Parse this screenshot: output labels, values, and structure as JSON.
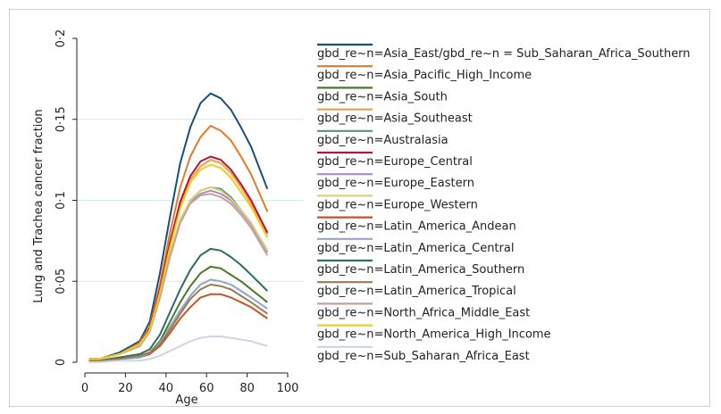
{
  "chart_data": {
    "type": "line",
    "xlabel": "Age",
    "ylabel": "Lung and Trachea cancer fraction",
    "xlim": [
      0,
      100
    ],
    "ylim": [
      0,
      0.2
    ],
    "x_ticks": [
      {
        "value": 0,
        "label": "0"
      },
      {
        "value": 20,
        "label": "20"
      },
      {
        "value": 40,
        "label": "40"
      },
      {
        "value": 60,
        "label": "60"
      },
      {
        "value": 80,
        "label": "80"
      },
      {
        "value": 100,
        "label": "100"
      }
    ],
    "y_ticks": [
      {
        "value": 0,
        "label": "0"
      },
      {
        "value": 0.05,
        "label": "0·05"
      },
      {
        "value": 0.1,
        "label": "0·1"
      },
      {
        "value": 0.15,
        "label": "0·15"
      },
      {
        "value": 0.2,
        "label": "0·2"
      }
    ],
    "grid": "horizontal",
    "legend_position": "right",
    "x": [
      2,
      7,
      17,
      27,
      32,
      37,
      42,
      47,
      52,
      57,
      62,
      67,
      72,
      77,
      82,
      90
    ],
    "series": [
      {
        "name": "gbd_re~n=Asia_East/gbd_re~n = Sub_Saharan_Africa_Southern",
        "color": "#1b4f7a",
        "values": [
          0.002,
          0.002,
          0.006,
          0.013,
          0.025,
          0.055,
          0.09,
          0.123,
          0.145,
          0.16,
          0.166,
          0.163,
          0.156,
          0.145,
          0.133,
          0.107
        ]
      },
      {
        "name": "gbd_re~n=Asia_Pacific_High_Income",
        "color": "#e07b2a",
        "values": [
          0.002,
          0.002,
          0.005,
          0.012,
          0.022,
          0.048,
          0.08,
          0.108,
          0.127,
          0.139,
          0.146,
          0.143,
          0.137,
          0.127,
          0.116,
          0.093
        ]
      },
      {
        "name": "gbd_re~n=Asia_South",
        "color": "#4d7a2a",
        "values": [
          0.001,
          0.001,
          0.002,
          0.004,
          0.006,
          0.013,
          0.025,
          0.037,
          0.047,
          0.055,
          0.059,
          0.058,
          0.054,
          0.05,
          0.045,
          0.037
        ]
      },
      {
        "name": "gbd_re~n=Asia_Southeast",
        "color": "#f0a04b",
        "values": [
          0.002,
          0.002,
          0.005,
          0.011,
          0.021,
          0.045,
          0.073,
          0.097,
          0.113,
          0.121,
          0.125,
          0.123,
          0.117,
          0.108,
          0.098,
          0.079
        ]
      },
      {
        "name": "gbd_re~n=Australasia",
        "color": "#5f8f7a",
        "values": [
          0.002,
          0.002,
          0.005,
          0.01,
          0.019,
          0.04,
          0.066,
          0.087,
          0.1,
          0.106,
          0.108,
          0.107,
          0.102,
          0.094,
          0.086,
          0.069
        ]
      },
      {
        "name": "gbd_re~n=Europe_Central",
        "color": "#b3163a",
        "values": [
          0.002,
          0.002,
          0.005,
          0.011,
          0.021,
          0.045,
          0.074,
          0.099,
          0.115,
          0.124,
          0.127,
          0.125,
          0.119,
          0.11,
          0.1,
          0.08
        ]
      },
      {
        "name": "gbd_re~n=Europe_Eastern",
        "color": "#a98cc4",
        "values": [
          0.002,
          0.002,
          0.005,
          0.01,
          0.019,
          0.041,
          0.066,
          0.087,
          0.099,
          0.104,
          0.106,
          0.104,
          0.1,
          0.093,
          0.085,
          0.068
        ]
      },
      {
        "name": "gbd_re~n=Europe_Western",
        "color": "#d9d37a",
        "values": [
          0.002,
          0.002,
          0.005,
          0.01,
          0.019,
          0.041,
          0.067,
          0.088,
          0.1,
          0.106,
          0.108,
          0.106,
          0.101,
          0.094,
          0.086,
          0.069
        ]
      },
      {
        "name": "gbd_re~n=Latin_America_Andean",
        "color": "#c2562a",
        "values": [
          0.001,
          0.001,
          0.002,
          0.003,
          0.005,
          0.01,
          0.018,
          0.027,
          0.034,
          0.04,
          0.042,
          0.042,
          0.04,
          0.037,
          0.034,
          0.027
        ]
      },
      {
        "name": "gbd_re~n=Latin_America_Central",
        "color": "#8fa6c4",
        "values": [
          0.001,
          0.001,
          0.002,
          0.003,
          0.006,
          0.012,
          0.022,
          0.032,
          0.041,
          0.048,
          0.051,
          0.05,
          0.048,
          0.044,
          0.04,
          0.033
        ]
      },
      {
        "name": "gbd_re~n=Latin_America_Southern",
        "color": "#2e6e5c",
        "values": [
          0.001,
          0.001,
          0.003,
          0.005,
          0.008,
          0.017,
          0.031,
          0.045,
          0.057,
          0.066,
          0.07,
          0.069,
          0.065,
          0.06,
          0.054,
          0.044
        ]
      },
      {
        "name": "gbd_re~n=Latin_America_Tropical",
        "color": "#9a7a52",
        "values": [
          0.001,
          0.001,
          0.002,
          0.004,
          0.006,
          0.011,
          0.02,
          0.03,
          0.039,
          0.045,
          0.048,
          0.047,
          0.045,
          0.041,
          0.037,
          0.03
        ]
      },
      {
        "name": "gbd_re~n=North_Africa_Middle_East",
        "color": "#c4a29a",
        "values": [
          0.002,
          0.002,
          0.005,
          0.01,
          0.019,
          0.04,
          0.065,
          0.086,
          0.098,
          0.103,
          0.104,
          0.102,
          0.098,
          0.091,
          0.083,
          0.066
        ]
      },
      {
        "name": "gbd_re~n=North_America_High_Income",
        "color": "#f2cc1c",
        "values": [
          0.002,
          0.002,
          0.005,
          0.011,
          0.02,
          0.043,
          0.071,
          0.095,
          0.111,
          0.119,
          0.122,
          0.12,
          0.114,
          0.105,
          0.096,
          0.077
        ]
      },
      {
        "name": "gbd_re~n=Sub_Saharan_Africa_East",
        "color": "#c9d7e6",
        "values": [
          0.0,
          0.0,
          0.001,
          0.001,
          0.002,
          0.004,
          0.007,
          0.01,
          0.013,
          0.015,
          0.016,
          0.016,
          0.015,
          0.014,
          0.013,
          0.01
        ]
      }
    ]
  }
}
